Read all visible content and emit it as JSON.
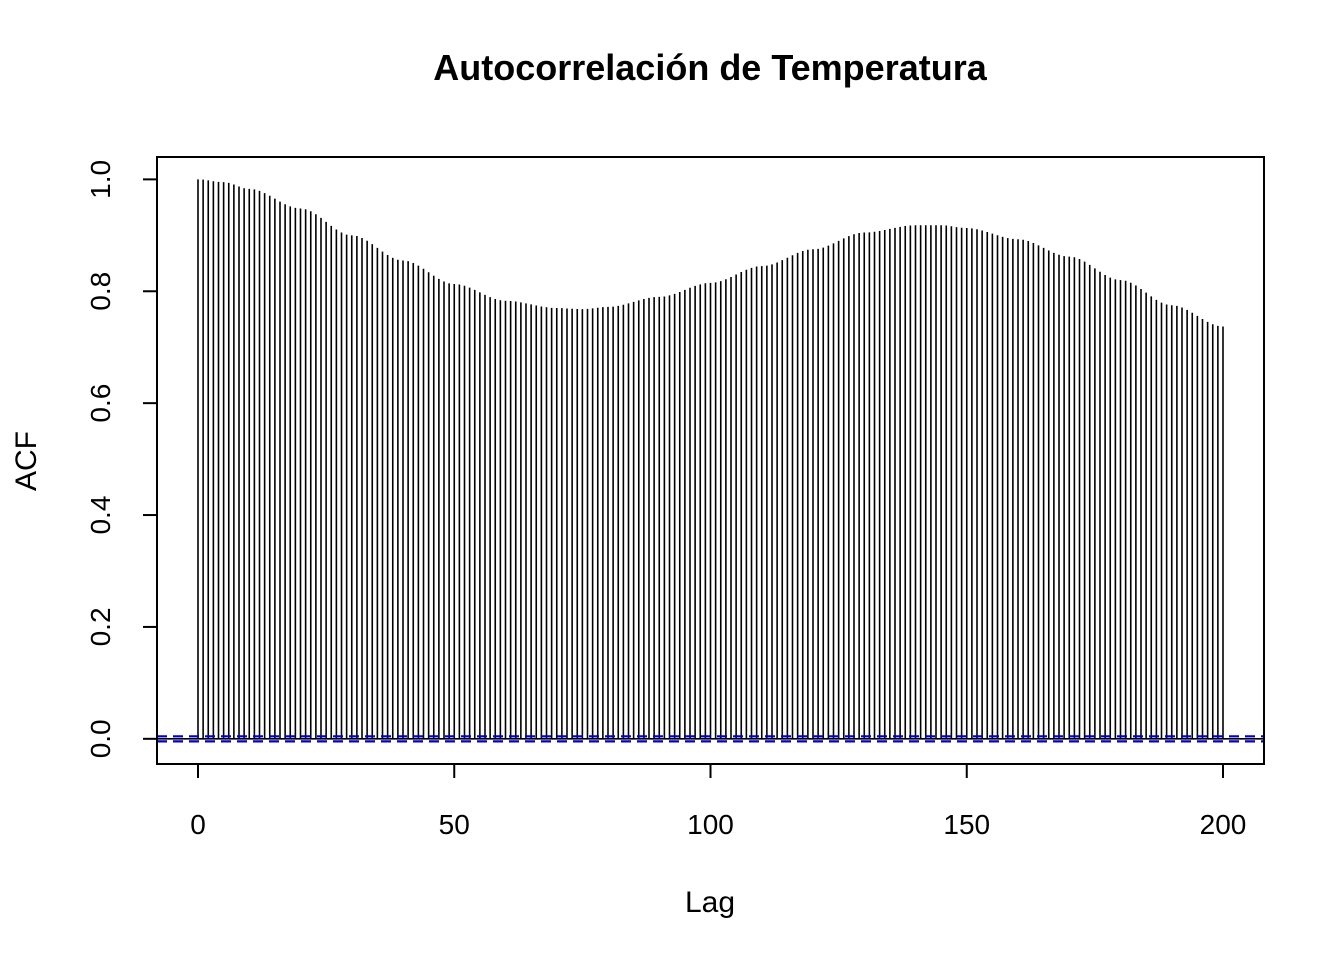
{
  "chart_data": {
    "type": "bar",
    "title": "Autocorrelación de Temperatura",
    "xlabel": "Lag",
    "ylabel": "ACF",
    "xlim": [
      -8,
      208
    ],
    "ylim": [
      -0.045,
      1.04
    ],
    "x_ticks": [
      0,
      50,
      100,
      150,
      200
    ],
    "x_tick_labels": [
      "0",
      "50",
      "100",
      "150",
      "200"
    ],
    "y_ticks": [
      0.0,
      0.2,
      0.4,
      0.6,
      0.8,
      1.0
    ],
    "y_tick_labels": [
      "0.0",
      "0.2",
      "0.4",
      "0.6",
      "0.8",
      "1.0"
    ],
    "lag_start": 0,
    "lag_end": 200,
    "acf_keypoints": [
      [
        0,
        1.0
      ],
      [
        5,
        0.995
      ],
      [
        10,
        0.983
      ],
      [
        20,
        0.948
      ],
      [
        30,
        0.9
      ],
      [
        40,
        0.855
      ],
      [
        50,
        0.813
      ],
      [
        60,
        0.783
      ],
      [
        70,
        0.77
      ],
      [
        75,
        0.768
      ],
      [
        80,
        0.772
      ],
      [
        90,
        0.79
      ],
      [
        100,
        0.815
      ],
      [
        110,
        0.845
      ],
      [
        120,
        0.875
      ],
      [
        130,
        0.905
      ],
      [
        140,
        0.918
      ],
      [
        145,
        0.918
      ],
      [
        150,
        0.913
      ],
      [
        160,
        0.893
      ],
      [
        170,
        0.862
      ],
      [
        180,
        0.82
      ],
      [
        190,
        0.775
      ],
      [
        200,
        0.737
      ]
    ],
    "confidence_bound": 0.0045,
    "zero_line": 0,
    "colors": {
      "bars": "#000000",
      "confidence": "#0000CC",
      "frame": "#000000"
    },
    "grid": false,
    "legend": "none"
  }
}
